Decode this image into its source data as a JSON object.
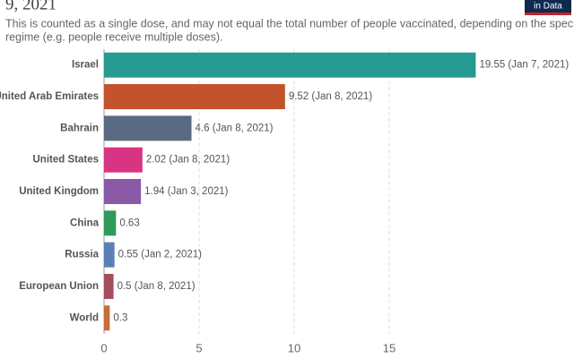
{
  "chart_data": {
    "type": "bar",
    "orientation": "horizontal",
    "title": "9, 2021",
    "subtitle": [
      "This is counted as a single dose, and may not equal the total number of people vaccinated, depending on the specific dose",
      "regime (e.g. people receive multiple doses)."
    ],
    "logo": "in Data",
    "categories": [
      "Israel",
      "United Arab Emirates",
      "Bahrain",
      "United States",
      "United Kingdom",
      "China",
      "Russia",
      "European Union",
      "World"
    ],
    "values": [
      19.55,
      9.52,
      4.6,
      2.02,
      1.94,
      0.63,
      0.55,
      0.5,
      0.3
    ],
    "value_labels": [
      "19.55 (Jan 7, 2021)",
      "9.52 (Jan 8, 2021)",
      "4.6 (Jan 8, 2021)",
      "2.02 (Jan 8, 2021)",
      "1.94 (Jan 3, 2021)",
      "0.63",
      "0.55 (Jan 2, 2021)",
      "0.5 (Jan 8, 2021)",
      "0.3"
    ],
    "colors": [
      "#259a90",
      "#c2532b",
      "#5a6a82",
      "#d93483",
      "#8a5aa6",
      "#2f9b5a",
      "#5a80b7",
      "#a44f5b",
      "#c76c39"
    ],
    "xlim": [
      0,
      20
    ],
    "xticks": [
      0,
      5,
      10,
      15
    ],
    "grid": true
  }
}
